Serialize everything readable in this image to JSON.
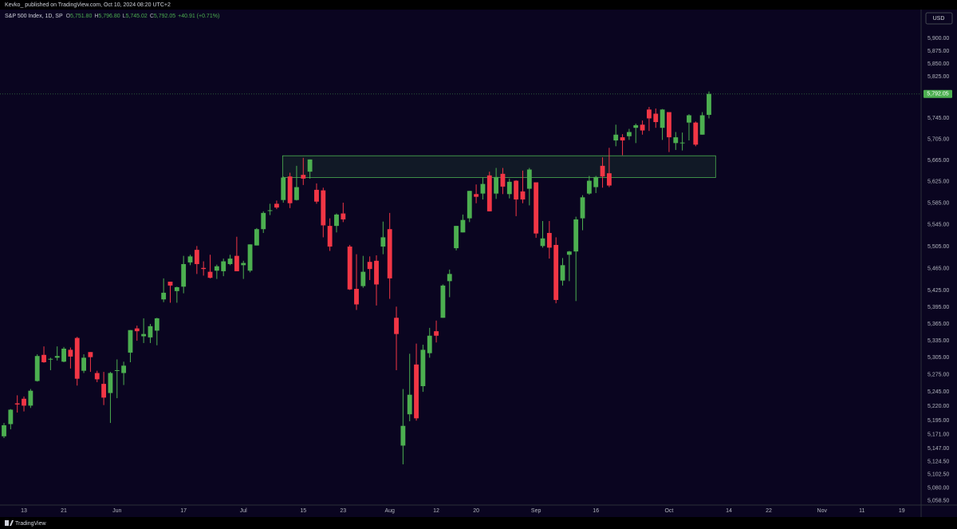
{
  "header": {
    "published": "Kevko_ published on TradingView.com, Oct 10, 2024 08:20 UTC+2"
  },
  "chart_data": {
    "type": "candlestick",
    "legend": {
      "symbol": "S&P 500 Index, 1D, SP",
      "fields": [
        {
          "key": "O",
          "value": "5,751.80"
        },
        {
          "key": "H",
          "value": "5,796.80"
        },
        {
          "key": "L",
          "value": "5,745.02"
        },
        {
          "key": "C",
          "value": "5,792.05"
        }
      ],
      "change": "+40.91 (+0.71%)"
    },
    "currency": "USD",
    "up_color": "#4caf50",
    "down_color": "#f23645",
    "log_scale": true,
    "grid": false,
    "open": [
      5168,
      5189,
      5225,
      5233,
      5221,
      5264,
      5310,
      5303,
      5305,
      5298,
      5319,
      5340,
      5282,
      5315,
      5278,
      5259,
      5243,
      5283,
      5278,
      5314,
      5357,
      5343,
      5341,
      5353,
      5409,
      5441,
      5424,
      5432,
      5476,
      5499,
      5466,
      5459,
      5461,
      5460,
      5473,
      5488,
      5471,
      5461,
      5507,
      5537,
      5572,
      5584,
      5591,
      5635,
      5591,
      5638,
      5644,
      5610,
      5609,
      5543,
      5543,
      5566,
      5505,
      5428,
      5433,
      5477,
      5479,
      5505,
      5537,
      5376,
      5152,
      5206,
      5293,
      5255,
      5313,
      5352,
      5376,
      5442,
      5502,
      5531,
      5557,
      5602,
      5603,
      5637,
      5603,
      5640,
      5602,
      5627,
      5607,
      5612,
      5624,
      5506,
      5530,
      5508,
      5443,
      5490,
      5496,
      5557,
      5603,
      5615,
      5655,
      5641,
      5703,
      5709,
      5711,
      5727,
      5733,
      5762,
      5754,
      5727,
      5757,
      5698,
      5698,
      5737,
      5737,
      5714,
      5751.8
    ],
    "high": [
      5191,
      5215,
      5239,
      5237,
      5250,
      5311,
      5325,
      5305,
      5325,
      5324,
      5323,
      5342,
      5311,
      5315,
      5282,
      5280,
      5280,
      5302,
      5298,
      5354,
      5362,
      5375,
      5365,
      5376,
      5447,
      5441,
      5432,
      5488,
      5490,
      5506,
      5478,
      5490,
      5472,
      5483,
      5490,
      5523,
      5479,
      5509,
      5539,
      5570,
      5584,
      5590,
      5635,
      5642,
      5655,
      5670,
      5667,
      5622,
      5614,
      5557,
      5566,
      5586,
      5508,
      5491,
      5488,
      5487,
      5489,
      5551,
      5567,
      5396,
      5250,
      5312,
      5330,
      5328,
      5358,
      5371,
      5436,
      5463,
      5543,
      5564,
      5608,
      5620,
      5633,
      5644,
      5651,
      5651,
      5631,
      5628,
      5646,
      5651,
      5624,
      5552,
      5552,
      5522,
      5484,
      5497,
      5560,
      5600,
      5636,
      5636,
      5671,
      5689,
      5733,
      5715,
      5725,
      5735,
      5741,
      5767,
      5764,
      5763,
      5757,
      5719,
      5718,
      5753,
      5739,
      5757,
      5796.8
    ],
    "low": [
      5165,
      5180,
      5209,
      5211,
      5217,
      5263,
      5296,
      5283,
      5300,
      5297,
      5286,
      5256,
      5278,
      5280,
      5262,
      5222,
      5191,
      5234,
      5257,
      5297,
      5335,
      5331,
      5331,
      5327,
      5404,
      5403,
      5403,
      5420,
      5471,
      5455,
      5452,
      5447,
      5446,
      5451,
      5471,
      5460,
      5446,
      5458,
      5507,
      5530,
      5563,
      5574,
      5586,
      5576,
      5590,
      5619,
      5631,
      5584,
      5522,
      5497,
      5531,
      5550,
      5426,
      5390,
      5430,
      5444,
      5398,
      5491,
      5410,
      5283,
      5120,
      5194,
      5195,
      5245,
      5305,
      5332,
      5376,
      5413,
      5498,
      5531,
      5550,
      5585,
      5592,
      5570,
      5593,
      5602,
      5594,
      5561,
      5585,
      5581,
      5521,
      5503,
      5483,
      5402,
      5434,
      5442,
      5406,
      5535,
      5601,
      5604,
      5614,
      5615,
      5692,
      5675,
      5704,
      5698,
      5714,
      5721,
      5727,
      5704,
      5681,
      5685,
      5684,
      5703,
      5692,
      5714,
      5745.02
    ],
    "close": [
      5187,
      5214,
      5223,
      5221,
      5247,
      5308,
      5297,
      5303,
      5308,
      5321,
      5307,
      5268,
      5305,
      5306,
      5267,
      5235,
      5278,
      5283,
      5291,
      5354,
      5352,
      5347,
      5361,
      5375,
      5421,
      5434,
      5431,
      5473,
      5487,
      5473,
      5464,
      5448,
      5469,
      5478,
      5483,
      5460,
      5475,
      5509,
      5537,
      5567,
      5572,
      5577,
      5633,
      5585,
      5615,
      5631,
      5667,
      5588,
      5544,
      5505,
      5564,
      5555,
      5427,
      5400,
      5459,
      5464,
      5436,
      5522,
      5447,
      5347,
      5186,
      5240,
      5199,
      5319,
      5344,
      5344,
      5434,
      5455,
      5543,
      5554,
      5608,
      5597,
      5621,
      5570,
      5634,
      5616,
      5625,
      5592,
      5592,
      5648,
      5529,
      5520,
      5503,
      5408,
      5471,
      5496,
      5555,
      5596,
      5627,
      5634,
      5635,
      5618,
      5714,
      5703,
      5719,
      5732,
      5722,
      5745,
      5738,
      5762,
      5709,
      5709,
      5699,
      5751,
      5695,
      5751,
      5792.05
    ],
    "zone": {
      "x": [
        41.9,
        107
      ],
      "y": [
        5633,
        5674
      ],
      "color": "#4caf50"
    },
    "price_badge": {
      "value": 5792.05,
      "label": "5,792.05"
    },
    "xlim": [
      -0.6,
      137.9
    ],
    "xticks": [
      {
        "value": 3,
        "label": "13"
      },
      {
        "value": 9,
        "label": "21"
      },
      {
        "value": 17,
        "label": "Jun"
      },
      {
        "value": 27,
        "label": "17"
      },
      {
        "value": 36,
        "label": "Jul"
      },
      {
        "value": 45,
        "label": "15"
      },
      {
        "value": 51,
        "label": "23"
      },
      {
        "value": 58,
        "label": "Aug"
      },
      {
        "value": 65,
        "label": "12"
      },
      {
        "value": 71,
        "label": "20"
      },
      {
        "value": 80,
        "label": "Sep"
      },
      {
        "value": 89,
        "label": "16"
      },
      {
        "value": 100,
        "label": "Oct"
      },
      {
        "value": 109,
        "label": "14"
      },
      {
        "value": 115,
        "label": "22"
      },
      {
        "value": 123,
        "label": "Nov"
      },
      {
        "value": 129,
        "label": "11"
      },
      {
        "value": 135,
        "label": "19"
      }
    ],
    "ylim": [
      5051,
      5957
    ],
    "yticks": [
      {
        "value": 5900,
        "label": "5,900.00"
      },
      {
        "value": 5875,
        "label": "5,875.00"
      },
      {
        "value": 5850,
        "label": "5,850.00"
      },
      {
        "value": 5825,
        "label": "5,825.00"
      },
      {
        "value": 5745,
        "label": "5,745.00"
      },
      {
        "value": 5705,
        "label": "5,705.00"
      },
      {
        "value": 5665,
        "label": "5,665.00"
      },
      {
        "value": 5625,
        "label": "5,625.00"
      },
      {
        "value": 5585,
        "label": "5,585.00"
      },
      {
        "value": 5545,
        "label": "5,545.00"
      },
      {
        "value": 5505,
        "label": "5,505.00"
      },
      {
        "value": 5465,
        "label": "5,465.00"
      },
      {
        "value": 5425,
        "label": "5,425.00"
      },
      {
        "value": 5395,
        "label": "5,395.00"
      },
      {
        "value": 5365,
        "label": "5,365.00"
      },
      {
        "value": 5335,
        "label": "5,335.00"
      },
      {
        "value": 5305,
        "label": "5,305.00"
      },
      {
        "value": 5275,
        "label": "5,275.00"
      },
      {
        "value": 5245,
        "label": "5,245.00"
      },
      {
        "value": 5220,
        "label": "5,220.00"
      },
      {
        "value": 5195,
        "label": "5,195.00"
      },
      {
        "value": 5171,
        "label": "5,171.00"
      },
      {
        "value": 5147,
        "label": "5,147.00"
      },
      {
        "value": 5124.5,
        "label": "5,124.50"
      },
      {
        "value": 5102.5,
        "label": "5,102.50"
      },
      {
        "value": 5080,
        "label": "5,080.00"
      },
      {
        "value": 5058.5,
        "label": "5,058.50"
      }
    ]
  },
  "footer": {
    "brand": "TradingView"
  }
}
